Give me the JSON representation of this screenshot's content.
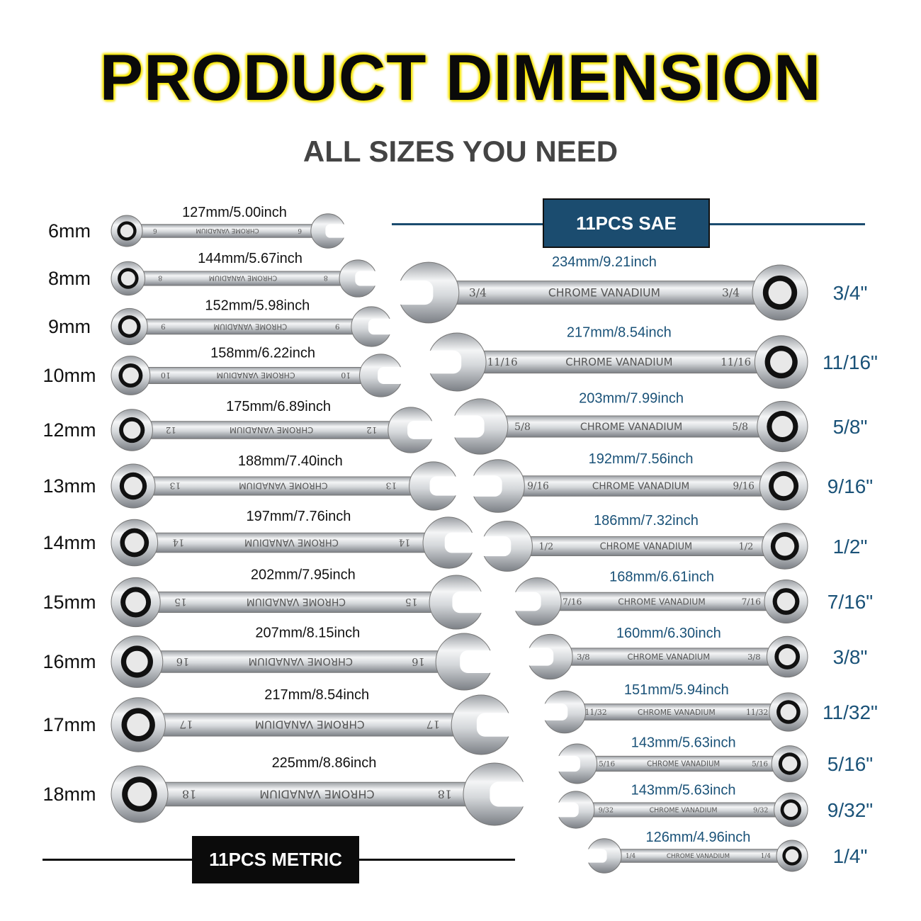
{
  "title": "PRODUCT DIMENSION",
  "subtitle": "ALL SIZES YOU NEED",
  "stamp_text": "CHROME VANADIUM",
  "colors": {
    "title_glow": "#f5e400",
    "sae_accent": "#1b4c6f",
    "sae_text": "#1a5278",
    "metric_badge": "#0b0b0b"
  },
  "sae": {
    "badge": "11PCS SAE",
    "items": [
      {
        "size": "3/4\"",
        "stamp": "3/4",
        "length": "234mm/9.21inch",
        "mm": 234
      },
      {
        "size": "11/16\"",
        "stamp": "11/16",
        "length": "217mm/8.54inch",
        "mm": 217
      },
      {
        "size": "5/8\"",
        "stamp": "5/8",
        "length": "203mm/7.99inch",
        "mm": 203
      },
      {
        "size": "9/16\"",
        "stamp": "9/16",
        "length": "192mm/7.56inch",
        "mm": 192
      },
      {
        "size": "1/2\"",
        "stamp": "1/2",
        "length": "186mm/7.32inch",
        "mm": 186
      },
      {
        "size": "7/16\"",
        "stamp": "7/16",
        "length": "168mm/6.61inch",
        "mm": 168
      },
      {
        "size": "3/8\"",
        "stamp": "3/8",
        "length": "160mm/6.30inch",
        "mm": 160
      },
      {
        "size": "11/32\"",
        "stamp": "11/32",
        "length": "151mm/5.94inch",
        "mm": 151
      },
      {
        "size": "5/16\"",
        "stamp": "5/16",
        "length": "143mm/5.63inch",
        "mm": 143
      },
      {
        "size": "9/32\"",
        "stamp": "9/32",
        "length": "143mm/5.63inch",
        "mm": 143
      },
      {
        "size": "1/4\"",
        "stamp": "1/4",
        "length": "126mm/4.96inch",
        "mm": 126
      }
    ]
  },
  "metric": {
    "badge": "11PCS METRIC",
    "items": [
      {
        "size": "6mm",
        "stamp": "6",
        "length": "127mm/5.00inch",
        "mm": 127
      },
      {
        "size": "8mm",
        "stamp": "8",
        "length": "144mm/5.67inch",
        "mm": 144
      },
      {
        "size": "9mm",
        "stamp": "9",
        "length": "152mm/5.98inch",
        "mm": 152
      },
      {
        "size": "10mm",
        "stamp": "10",
        "length": "158mm/6.22inch",
        "mm": 158
      },
      {
        "size": "12mm",
        "stamp": "12",
        "length": "175mm/6.89inch",
        "mm": 175
      },
      {
        "size": "13mm",
        "stamp": "13",
        "length": "188mm/7.40inch",
        "mm": 188
      },
      {
        "size": "14mm",
        "stamp": "14",
        "length": "197mm/7.76inch",
        "mm": 197
      },
      {
        "size": "15mm",
        "stamp": "15",
        "length": "202mm/7.95inch",
        "mm": 202
      },
      {
        "size": "16mm",
        "stamp": "16",
        "length": "207mm/8.15inch",
        "mm": 207
      },
      {
        "size": "17mm",
        "stamp": "17",
        "length": "217mm/8.54inch",
        "mm": 217
      },
      {
        "size": "18mm",
        "stamp": "18",
        "length": "225mm/8.86inch",
        "mm": 225
      }
    ]
  }
}
